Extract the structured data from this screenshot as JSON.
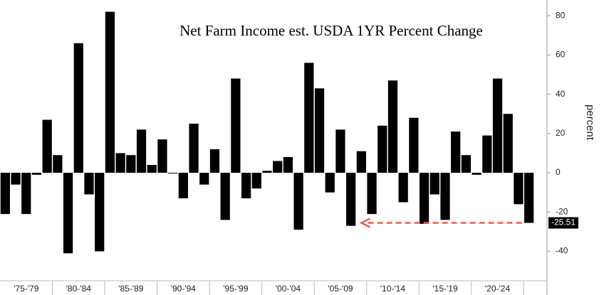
{
  "chart_data": {
    "type": "bar",
    "title": "Net Farm Income est. USDA 1YR Percent Change",
    "y_label": "percent",
    "categories": [
      null,
      null,
      "'75-'79",
      null,
      null,
      null,
      null,
      "'80-'84",
      null,
      null,
      null,
      null,
      "'85-'89",
      null,
      null,
      null,
      null,
      "'90-'94",
      null,
      null,
      null,
      null,
      "'95-'99",
      null,
      null,
      null,
      null,
      "'00-'04",
      null,
      null,
      null,
      null,
      "'05-'09",
      null,
      null,
      null,
      null,
      "'10-'14",
      null,
      null,
      null,
      null,
      "'15-'19",
      null,
      null,
      null,
      null,
      "'20-'24",
      null,
      null,
      null
    ],
    "values": [
      -21,
      -6,
      -21,
      -1,
      27,
      9,
      -41,
      66,
      -11,
      -40,
      82,
      10,
      9,
      22,
      4,
      17,
      0,
      -13,
      25,
      -6,
      12,
      -24,
      48,
      -13,
      -8,
      1,
      6,
      8,
      -29,
      56,
      43,
      -10,
      22,
      -27,
      11,
      -21,
      24,
      47,
      -15,
      28,
      -26,
      -11,
      -24,
      21,
      9,
      -1,
      19,
      48,
      30,
      -16,
      -25.51
    ],
    "color": "#000000",
    "ylim": [
      -55,
      88
    ],
    "yticks": [
      -40,
      -20,
      0,
      20,
      40,
      60,
      80
    ],
    "grid": false
  }
}
